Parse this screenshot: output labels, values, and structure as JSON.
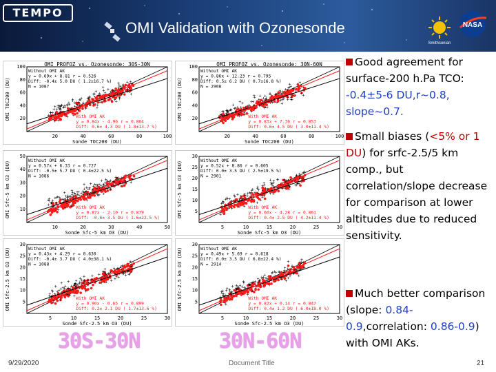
{
  "header": {
    "logo_text": "TEMPO",
    "title": "OMI Validation with Ozonesonde",
    "si_logo_text": "Smithsonian",
    "nasa_logo_text": "NASA"
  },
  "plots": [
    {
      "title": "OMI PROFOZ vs. Ozonesonde: 30S-30N",
      "ylabel": "OMI TOC200 (DU)",
      "xlabel": "Sonde TOC200 (DU)",
      "max": 100,
      "ticks": [
        "20",
        "40",
        "60",
        "80",
        "100"
      ],
      "stats_noak": [
        "Without OMI AK",
        "y = 0.69x + 8.81  r = 0.526",
        "Diff: -0.4± 5.0 DU ( 1.2±16.7 %)",
        "N = 1087"
      ],
      "stats_ak": [
        "With OMI AK",
        "y = 0.84x - 4.96  r = 0.864",
        "Diff: 0.6± 4.3 DU ( 1.8±13.7 %)"
      ]
    },
    {
      "title": "OMI PROFOZ vs. Ozonesonde: 30N-60N",
      "ylabel": "OMI TOC200 (DU)",
      "xlabel": "Sonde TOC200 (DU)",
      "max": 100,
      "ticks": [
        "20",
        "40",
        "60",
        "80",
        "100"
      ],
      "stats_noak": [
        "Without OMI AK",
        "y = 0.86x + 12.23  r = 0.795",
        "Diff: 0.5± 6.2 DU ( 0.7±16.8 %)",
        "N = 2908"
      ],
      "stats_ak": [
        "With OMI AK",
        "y = 0.83x + 7.36  r = 0.853",
        "Diff: 0.6± 4.5 DU ( 3.0±11.4 %)"
      ]
    },
    {
      "title": "",
      "ylabel": "OMI Sfc-5 km O3 (DU)",
      "xlabel": "Sonde Sfc-5 km O3 (DU)",
      "max": 50,
      "ticks": [
        "10",
        "20",
        "30",
        "40",
        "50"
      ],
      "stats_noak": [
        "Without OMI AK",
        "y = 0.57x + 6.33  r = 0.727",
        "Diff: -0.5± 5.7 DU ( 0.4±22.5 %)",
        "N = 1086"
      ],
      "stats_ak": [
        "With OMI AK",
        "y = 0.87x - 2.10  r = 0.879",
        "Diff: -0.6± 3.5 DU ( 1.6±22.5 %)"
      ]
    },
    {
      "title": "",
      "ylabel": "OMI Sfc-5 km O3 (DU)",
      "xlabel": "Sonde Sfc-5 km O3 (DU)",
      "max": 30,
      "ticks": [
        "5",
        "10",
        "15",
        "20",
        "25",
        "30"
      ],
      "stats_noak": [
        "Without OMI AK",
        "y = 0.52x + 8.86  r = 0.605",
        "Diff: 0.0± 3.5 DU ( 2.5±19.5 %)",
        "N = 2901"
      ],
      "stats_ak": [
        "With OMI AK",
        "y = 0.60x - 4.28  r = 0.861",
        "Diff: 0.4± 2.5 DU ( 4.2±11.4 %)"
      ]
    },
    {
      "title": "",
      "ylabel": "OMI Sfc-2.5 km O3 (DU)",
      "xlabel": "Sonde Sfc-2.5 km O3 (DU)",
      "max": 30,
      "ticks": [
        "5",
        "10",
        "15",
        "20",
        "25",
        "30"
      ],
      "stats_noak": [
        "Without OMI AK",
        "y = 0.43x + 4.29  r = 0.630",
        "Diff: -0.4± 3.7 DU ( 4.0±38.1 %)",
        "N = 1088"
      ],
      "stats_ak": [
        "With OMI AK",
        "y = 0.90x - 0.65  r = 0.899",
        "Diff: 0.2± 2.1 DU ( 1.7±13.6 %)"
      ]
    },
    {
      "title": "",
      "ylabel": "OMI Sfc-2.5 km O3 (DU)",
      "xlabel": "Sonde Sfc-2.5 km O3 (DU)",
      "max": 30,
      "ticks": [
        "5",
        "10",
        "15",
        "20",
        "25",
        "30"
      ],
      "stats_noak": [
        "Without OMI AK",
        "y = 0.49x + 5.69  r = 0.618",
        "Diff: 0.0± 3.5 DU ( 6.8±22.4 %)",
        "N = 2914"
      ],
      "stats_ak": [
        "With OMI AK",
        "y = 0.82x + 0.14  r = 0.847",
        "Diff: 0.4± 1.2 DU ( 6.0±18.0 %)"
      ]
    }
  ],
  "bullets": {
    "b1_pre": "Good agreement for surface-200 h.Pa TCO: ",
    "b1_val": "-0.4±5-6 DU,r~0.8, slope~0.7.",
    "b2_pre": "Small biases (",
    "b2_red": "<5% or 1 DU",
    "b2_post": ") for srfc-2.5/5 km comp., but correlation/slope decrease for comparison at lower altitudes due to reduced sensitivity.",
    "b3_pre": "Much better comparison (slope: ",
    "b3_v1": "0.84-0.9",
    "b3_mid": ",correlation: ",
    "b3_v2": "0.86-0.9",
    "b3_post": ") with OMI AKs."
  },
  "labels": {
    "left": "30S-30N",
    "right": "30N-60N"
  },
  "footer": {
    "date": "9/29/2020",
    "title": "Document Title",
    "page": "21"
  }
}
